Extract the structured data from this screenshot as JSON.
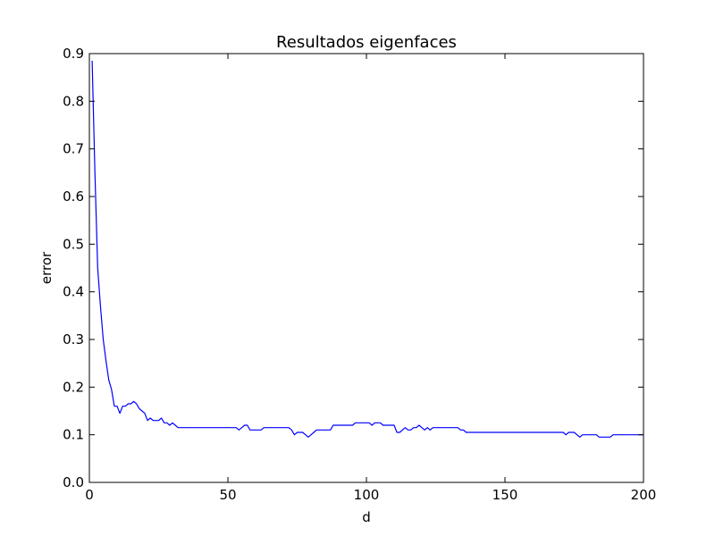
{
  "chart_data": {
    "type": "line",
    "title": "Resultados eigenfaces",
    "xlabel": "d",
    "ylabel": "error",
    "xlim": [
      0,
      200
    ],
    "ylim": [
      0.0,
      0.9
    ],
    "x_ticks": [
      "0",
      "50",
      "100",
      "150",
      "200"
    ],
    "y_ticks": [
      "0.0",
      "0.1",
      "0.2",
      "0.3",
      "0.4",
      "0.5",
      "0.6",
      "0.7",
      "0.8",
      "0.9"
    ],
    "grid": false,
    "series": [
      {
        "color": "#0000ff",
        "x": [
          1,
          2,
          3,
          4,
          5,
          6,
          7,
          8,
          9,
          10,
          11,
          12,
          13,
          14,
          15,
          16,
          17,
          18,
          19,
          20,
          21,
          22,
          23,
          24,
          25,
          26,
          27,
          28,
          29,
          30,
          31,
          32,
          33,
          34,
          35,
          40,
          45,
          50,
          52,
          53,
          54,
          55,
          56,
          57,
          58,
          59,
          60,
          61,
          62,
          63,
          64,
          65,
          66,
          67,
          68,
          69,
          70,
          71,
          72,
          73,
          74,
          75,
          76,
          77,
          78,
          79,
          80,
          81,
          82,
          83,
          84,
          85,
          86,
          87,
          88,
          90,
          93,
          95,
          96,
          97,
          98,
          99,
          100,
          101,
          102,
          103,
          104,
          105,
          106,
          107,
          108,
          109,
          110,
          111,
          112,
          113,
          114,
          115,
          116,
          117,
          118,
          119,
          120,
          121,
          122,
          123,
          124,
          125,
          126,
          127,
          128,
          129,
          130,
          131,
          132,
          133,
          134,
          135,
          136,
          140,
          150,
          160,
          165,
          170,
          171,
          172,
          173,
          174,
          175,
          176,
          177,
          178,
          179,
          180,
          181,
          182,
          183,
          184,
          185,
          186,
          187,
          188,
          189,
          190,
          195,
          200
        ],
        "y": [
          0.885,
          0.65,
          0.45,
          0.37,
          0.3,
          0.255,
          0.215,
          0.195,
          0.16,
          0.16,
          0.145,
          0.16,
          0.16,
          0.165,
          0.165,
          0.17,
          0.165,
          0.155,
          0.15,
          0.145,
          0.13,
          0.135,
          0.13,
          0.13,
          0.13,
          0.135,
          0.125,
          0.125,
          0.12,
          0.125,
          0.12,
          0.115,
          0.115,
          0.115,
          0.115,
          0.115,
          0.115,
          0.115,
          0.115,
          0.115,
          0.11,
          0.115,
          0.12,
          0.12,
          0.11,
          0.11,
          0.11,
          0.11,
          0.11,
          0.115,
          0.115,
          0.115,
          0.115,
          0.115,
          0.115,
          0.115,
          0.115,
          0.115,
          0.115,
          0.11,
          0.1,
          0.105,
          0.105,
          0.105,
          0.1,
          0.095,
          0.1,
          0.105,
          0.11,
          0.11,
          0.11,
          0.11,
          0.11,
          0.11,
          0.12,
          0.12,
          0.12,
          0.12,
          0.125,
          0.125,
          0.125,
          0.125,
          0.125,
          0.125,
          0.12,
          0.125,
          0.125,
          0.125,
          0.12,
          0.12,
          0.12,
          0.12,
          0.12,
          0.105,
          0.105,
          0.11,
          0.115,
          0.11,
          0.11,
          0.115,
          0.115,
          0.12,
          0.115,
          0.11,
          0.115,
          0.11,
          0.115,
          0.115,
          0.115,
          0.115,
          0.115,
          0.115,
          0.115,
          0.115,
          0.115,
          0.115,
          0.11,
          0.11,
          0.105,
          0.105,
          0.105,
          0.105,
          0.105,
          0.105,
          0.105,
          0.1,
          0.105,
          0.105,
          0.105,
          0.1,
          0.095,
          0.1,
          0.1,
          0.1,
          0.1,
          0.1,
          0.1,
          0.095,
          0.095,
          0.095,
          0.095,
          0.095,
          0.1,
          0.1,
          0.1,
          0.1
        ]
      }
    ]
  }
}
